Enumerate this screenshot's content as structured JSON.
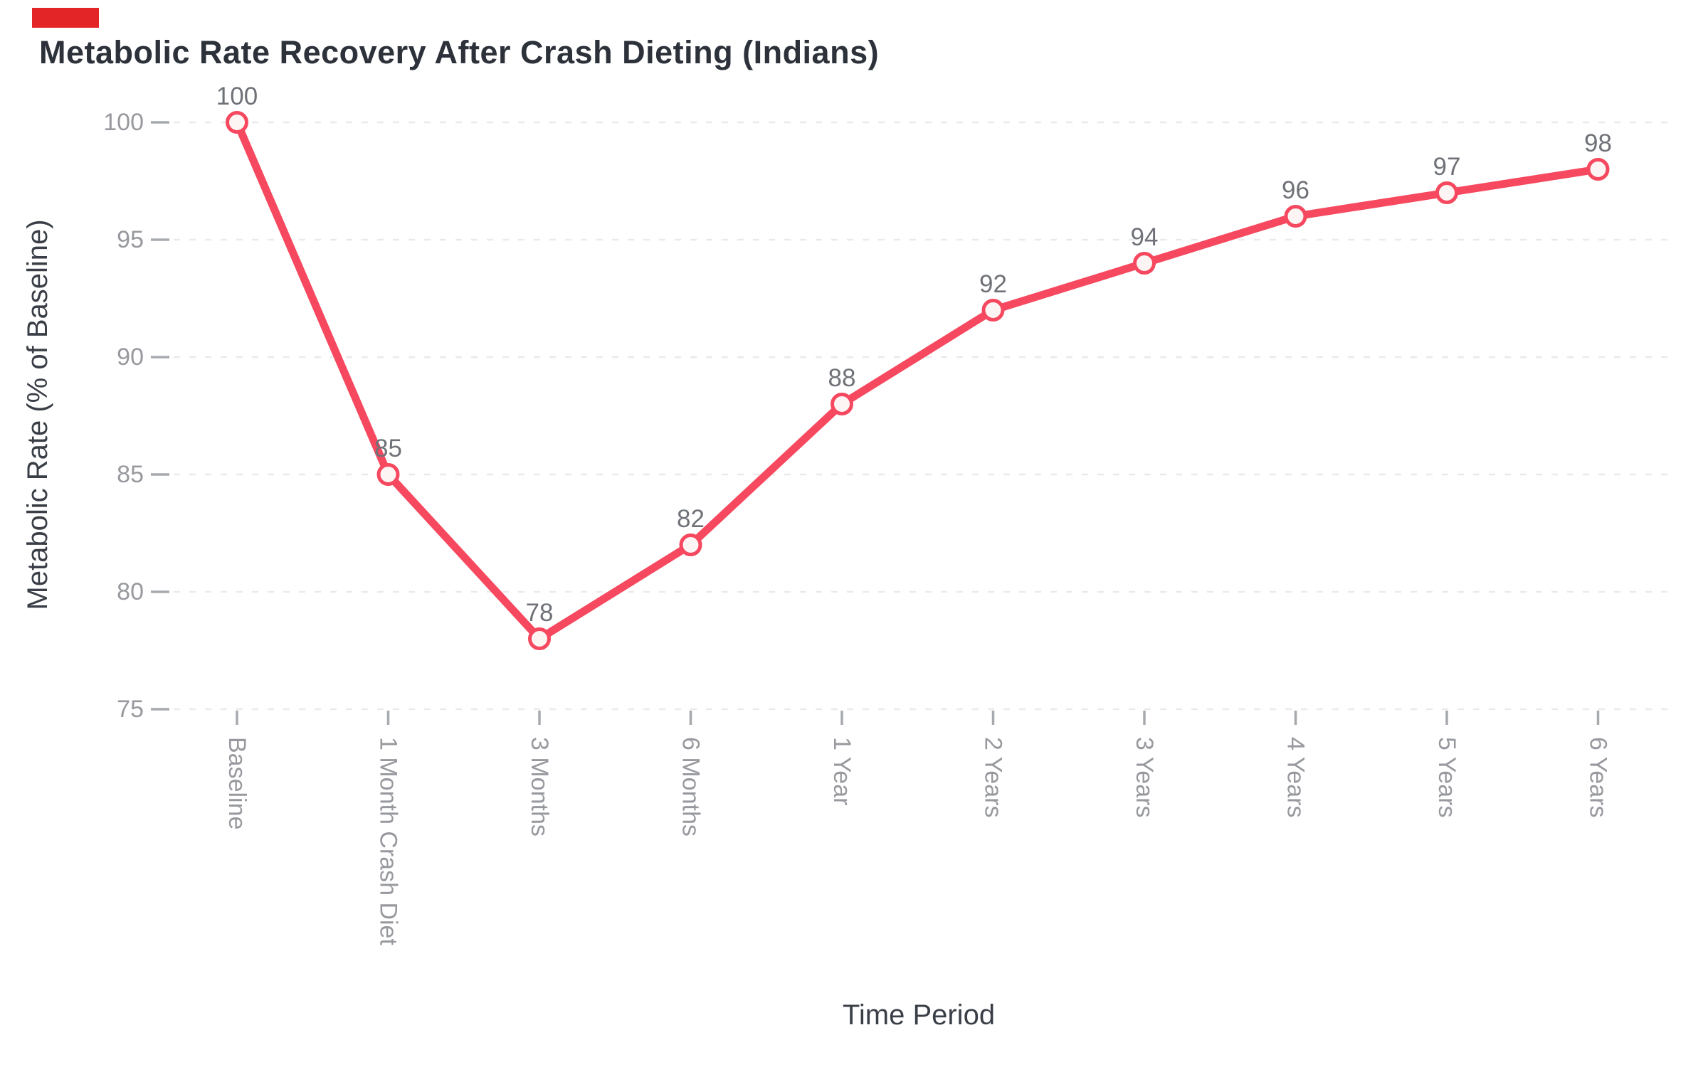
{
  "chart_data": {
    "type": "line",
    "title": "Metabolic Rate Recovery After Crash Dieting (Indians)",
    "xlabel": "Time Period",
    "ylabel": "Metabolic Rate (% of Baseline)",
    "categories": [
      "Baseline",
      "1 Month Crash Diet",
      "3 Months",
      "6 Months",
      "1 Year",
      "2 Years",
      "3 Years",
      "4 Years",
      "5 Years",
      "6 Years"
    ],
    "values": [
      100,
      85,
      78,
      82,
      88,
      92,
      94,
      96,
      97,
      98
    ],
    "point_labels": [
      "100",
      "85",
      "78",
      "82",
      "88",
      "92",
      "94",
      "96",
      "97",
      "98"
    ],
    "yticks": [
      100,
      95,
      90,
      85,
      80,
      75
    ],
    "ylim": [
      75,
      100
    ],
    "grid": "horizontal-dashed",
    "legend": "none",
    "x_tick_rotation": 90,
    "colors": {
      "line": "#f6485e",
      "marker_fill": "#fdf4f4",
      "marker_stroke": "#f6485e",
      "grid": "#eaeaea",
      "tick_mark": "#a6a9ad",
      "tick_label": "#97999e",
      "data_label": "#6e7177",
      "axis_label": "#3a3f47",
      "title": "#2c313a",
      "accent_block": "#e42527",
      "background": "#ffffff"
    }
  }
}
